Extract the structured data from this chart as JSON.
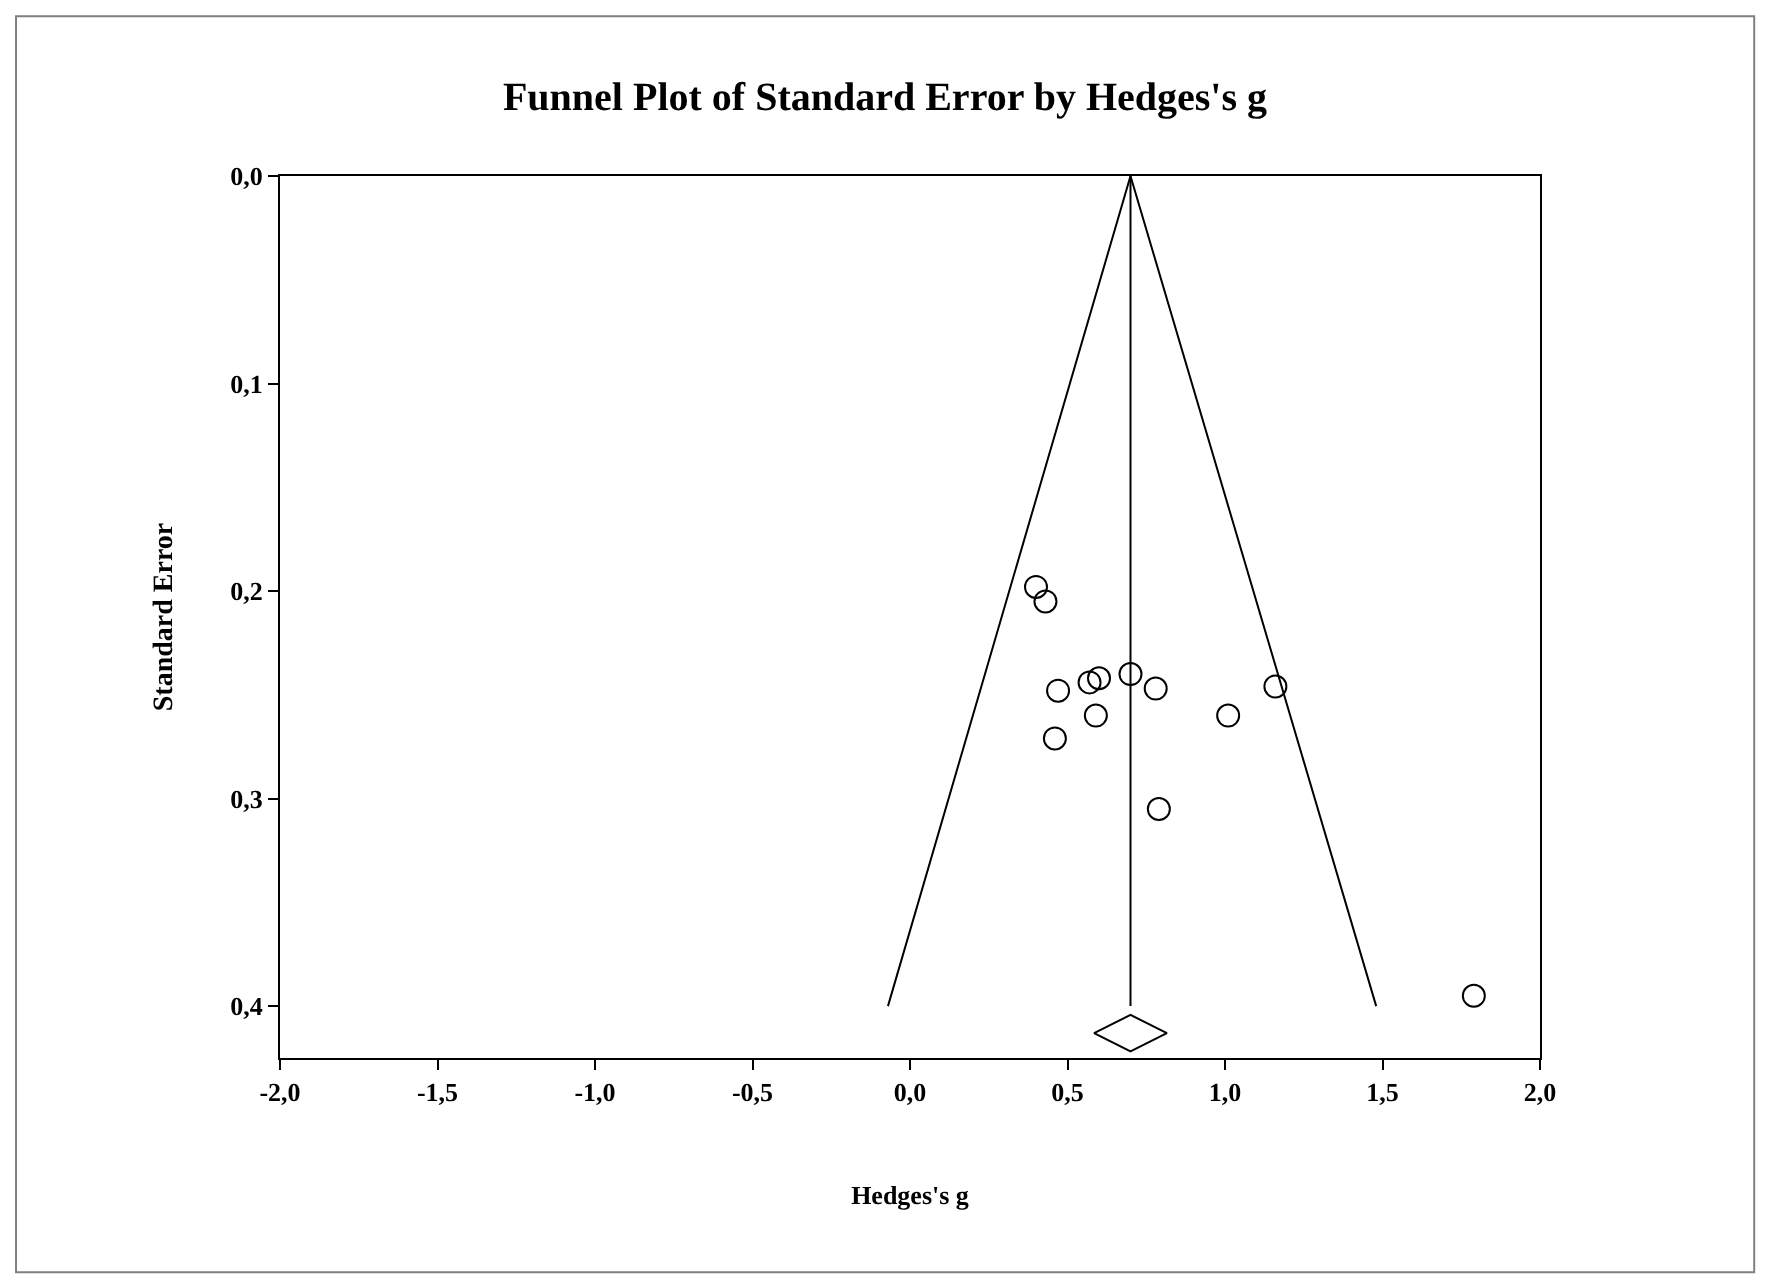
{
  "chart_data": {
    "type": "scatter",
    "title": "Funnel Plot of Standard Error by Hedges's g",
    "xlabel": "Hedges's g",
    "ylabel": "Standard Error",
    "xlim": [
      -2.0,
      2.0
    ],
    "xticks": [
      {
        "value": -2.0,
        "label": "-2,0"
      },
      {
        "value": -1.5,
        "label": "-1,5"
      },
      {
        "value": -1.0,
        "label": "-1,0"
      },
      {
        "value": -0.5,
        "label": "-0,5"
      },
      {
        "value": 0.0,
        "label": "0,0"
      },
      {
        "value": 0.5,
        "label": "0,5"
      },
      {
        "value": 1.0,
        "label": "1,0"
      },
      {
        "value": 1.5,
        "label": "1,5"
      },
      {
        "value": 2.0,
        "label": "2,0"
      }
    ],
    "ylim": [
      0.425,
      0.0
    ],
    "yticks": [
      {
        "value": 0.0,
        "label": "0,0"
      },
      {
        "value": 0.1,
        "label": "0,1"
      },
      {
        "value": 0.2,
        "label": "0,2"
      },
      {
        "value": 0.3,
        "label": "0,3"
      },
      {
        "value": 0.4,
        "label": "0,4"
      }
    ],
    "series": [
      {
        "type": "line",
        "color": "#000000",
        "marker": "none",
        "x": [
          -0.07,
          0.7,
          1.48
        ],
        "values": [
          0.4,
          0.0,
          0.4
        ]
      },
      {
        "type": "line",
        "color": "#000000",
        "marker": "none",
        "x": [
          0.7,
          0.7
        ],
        "values": [
          0.0,
          0.4
        ]
      },
      {
        "color": "#000000",
        "marker": "circle",
        "x": [
          0.4,
          0.43,
          0.47,
          0.57,
          0.6,
          0.7,
          0.78,
          0.59,
          0.46,
          1.01,
          1.16,
          0.79,
          1.79
        ],
        "values": [
          0.198,
          0.205,
          0.248,
          0.244,
          0.242,
          0.24,
          0.247,
          0.26,
          0.271,
          0.26,
          0.246,
          0.305,
          0.395
        ]
      },
      {
        "color": "#000000",
        "marker": "diamond",
        "x": [
          0.7
        ],
        "values": [
          0.413
        ]
      }
    ]
  }
}
